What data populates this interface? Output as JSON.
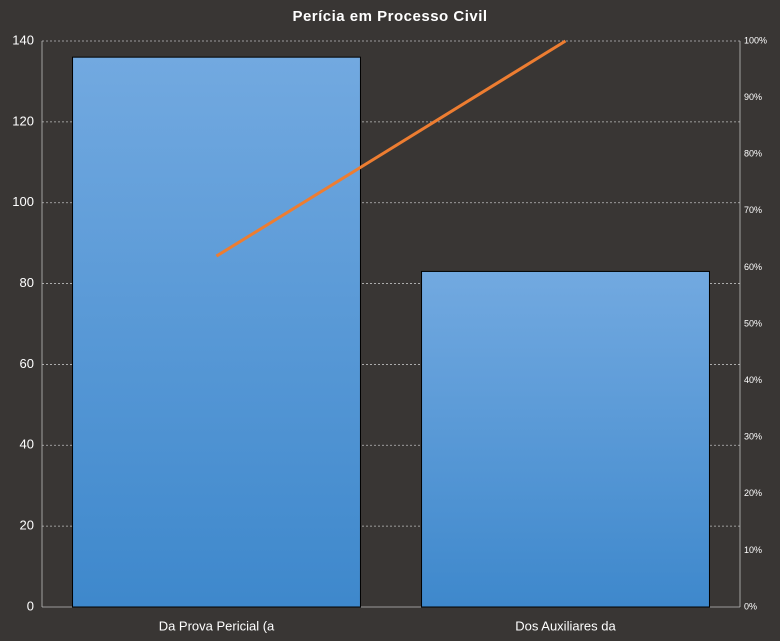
{
  "chart_data": {
    "type": "pareto",
    "title": "Perícia em Processo Civil",
    "categories": [
      "Da Prova Pericial (a",
      "Dos Auxiliares da"
    ],
    "series": [
      {
        "type": "bar",
        "color": "#5b9bd5",
        "values": [
          136,
          83
        ]
      },
      {
        "type": "line",
        "axis": "y2",
        "color": "#ed7d31",
        "values": [
          62,
          100
        ]
      }
    ],
    "ylim": [
      0,
      140
    ],
    "yticks": [
      0,
      20,
      40,
      60,
      80,
      100,
      120,
      140
    ],
    "y2lim": [
      0,
      100
    ],
    "y2ticks": [
      {
        "value": 0,
        "label": "0%"
      },
      {
        "value": 10,
        "label": "10%"
      },
      {
        "value": 20,
        "label": "20%"
      },
      {
        "value": 30,
        "label": "30%"
      },
      {
        "value": 40,
        "label": "40%"
      },
      {
        "value": 50,
        "label": "50%"
      },
      {
        "value": 60,
        "label": "60%"
      },
      {
        "value": 70,
        "label": "70%"
      },
      {
        "value": 80,
        "label": "80%"
      },
      {
        "value": 90,
        "label": "90%"
      },
      {
        "value": 100,
        "label": "100%"
      }
    ],
    "grid": true
  }
}
